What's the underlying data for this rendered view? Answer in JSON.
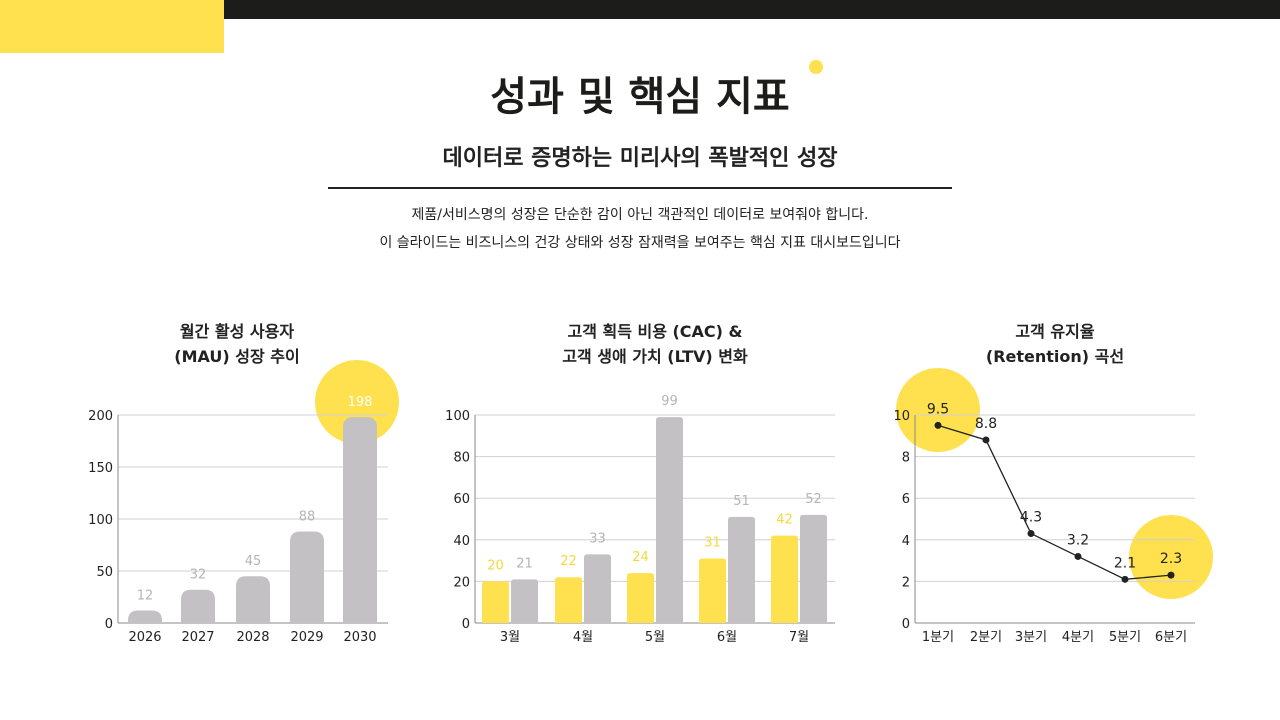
{
  "header": {
    "title": "성과 및 핵심 지표",
    "subtitle": "데이터로 증명하는 미리사의 폭발적인 성장",
    "desc_line1": "제품/서비스명의 성장은 단순한 감이 아닌 객관적인 데이터로 보여줘야 합니다.",
    "desc_line2": "이 슬라이드는 비즈니스의 건강 상태와 성장 잠재력을 보여주는 핵심 지표 대시보드입니다"
  },
  "colors": {
    "accent": "#ffe14f",
    "bar_gray": "#c4c1c5",
    "dark": "#1c1c1a"
  },
  "chart_data": [
    {
      "type": "bar",
      "title": [
        "월간 활성 사용자",
        "(MAU) 성장 추이"
      ],
      "categories": [
        "2026",
        "2027",
        "2028",
        "2029",
        "2030"
      ],
      "values": [
        12,
        32,
        45,
        88,
        198
      ],
      "ylim": [
        0,
        200
      ],
      "yticks": [
        0,
        50,
        100,
        150,
        200
      ],
      "grid": true,
      "highlight": "2030"
    },
    {
      "type": "bar",
      "title": [
        "고객 획득 비용 (CAC) &",
        "고객 생애 가치 (LTV) 변화"
      ],
      "categories": [
        "3월",
        "4월",
        "5월",
        "6월",
        "7월"
      ],
      "series": [
        {
          "values": [
            20,
            22,
            24,
            31,
            42
          ],
          "color": "#ffe14f"
        },
        {
          "values": [
            21,
            33,
            99,
            51,
            52
          ],
          "color": "#c4c1c5"
        }
      ],
      "ylim": [
        0,
        100
      ],
      "yticks": [
        0,
        20,
        40,
        60,
        80,
        100
      ],
      "grid": true
    },
    {
      "type": "line",
      "title": [
        "고객 유지율",
        "(Retention) 곡선"
      ],
      "categories": [
        "1분기",
        "2분기",
        "3분기",
        "4분기",
        "5분기",
        "6분기"
      ],
      "values": [
        9.5,
        8.8,
        4.3,
        3.2,
        2.1,
        2.3
      ],
      "ylim": [
        0,
        10
      ],
      "yticks": [
        0,
        2,
        4,
        6,
        8,
        10
      ],
      "grid": true,
      "highlight": [
        "1분기",
        "6분기"
      ]
    }
  ]
}
